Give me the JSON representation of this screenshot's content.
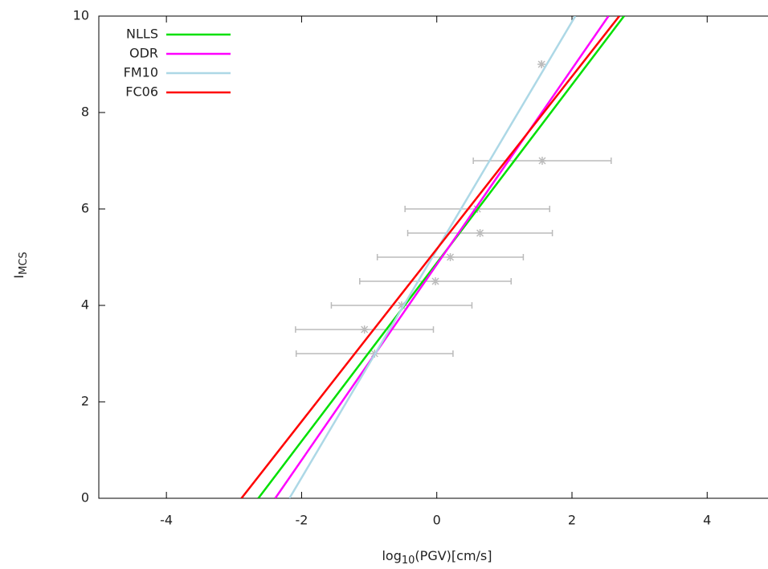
{
  "chart_data": {
    "type": "line",
    "xlabel": [
      "log",
      "10",
      "(PGV)[cm/s]"
    ],
    "ylabel": [
      "I",
      "MCS"
    ],
    "xlim": [
      -5,
      4.9
    ],
    "ylim": [
      0,
      10
    ],
    "xticks": [
      -4,
      -2,
      0,
      2,
      4
    ],
    "yticks": [
      0,
      2,
      4,
      6,
      8,
      10
    ],
    "legend": "top-left",
    "series": [
      {
        "name": "NLLS",
        "color": "#00e000",
        "x": [
          -2.64,
          2.77
        ],
        "values": [
          0,
          10
        ]
      },
      {
        "name": "ODR",
        "color": "#ff00ff",
        "x": [
          -2.39,
          2.54
        ],
        "values": [
          0,
          10
        ]
      },
      {
        "name": "FM10",
        "color": "#add8e6",
        "x": [
          -2.18,
          2.05
        ],
        "values": [
          0,
          10
        ]
      },
      {
        "name": "FC06",
        "color": "#ff0000",
        "x": [
          -2.89,
          2.7
        ],
        "values": [
          0,
          10
        ]
      }
    ],
    "points": {
      "color": "#bbbbbb",
      "x": [
        1.55,
        1.56,
        0.6,
        0.64,
        0.2,
        -0.02,
        -0.52,
        -1.07,
        -0.92
      ],
      "values": [
        9,
        7,
        6,
        5.5,
        5,
        4.5,
        4,
        3.5,
        3
      ],
      "errors": [
        0,
        1.02,
        1.07,
        1.07,
        1.08,
        1.12,
        1.04,
        1.02,
        1.16
      ]
    }
  }
}
